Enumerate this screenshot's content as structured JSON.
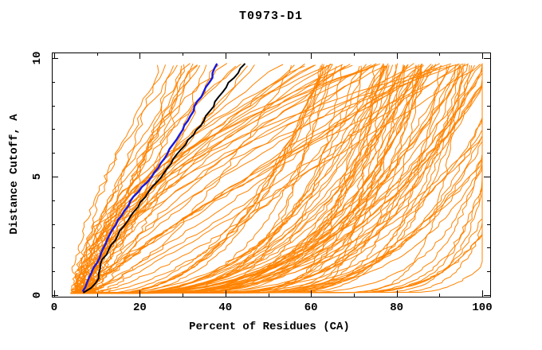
{
  "chart_data": {
    "type": "line",
    "title": "T0973-D1",
    "xlabel": "Percent of Residues (CA)",
    "ylabel": "Distance Cutoff, A",
    "xlim": [
      0,
      100
    ],
    "ylim": [
      0,
      10
    ],
    "grid": false,
    "legend": "none",
    "x_major_ticks": [
      0,
      20,
      40,
      60,
      80,
      100
    ],
    "x_minor_step": 10,
    "y_major_ticks": [
      0,
      5,
      10
    ],
    "y_minor_step": 1,
    "tick_style": "inward-all-four-sides",
    "frame_color": "#000000",
    "series": [
      {
        "name": "highlight-model-blue",
        "color": "#1818dc",
        "width": 2.4,
        "points": [
          [
            6.5,
            0.15
          ],
          [
            9.0,
            1.0
          ],
          [
            11.5,
            2.0
          ],
          [
            14.5,
            3.0
          ],
          [
            18.0,
            4.0
          ],
          [
            22.7,
            5.0
          ],
          [
            26.5,
            6.0
          ],
          [
            30.0,
            7.0
          ],
          [
            32.4,
            7.75
          ],
          [
            34.5,
            8.5
          ],
          [
            36.5,
            9.0
          ],
          [
            38.0,
            9.77
          ]
        ]
      },
      {
        "name": "highlight-model-black",
        "color": "#000000",
        "width": 2.0,
        "points": [
          [
            7.0,
            0.1
          ],
          [
            10.2,
            0.55
          ],
          [
            11.0,
            1.4
          ],
          [
            13.0,
            2.0
          ],
          [
            16.5,
            3.0
          ],
          [
            20.5,
            4.0
          ],
          [
            25.0,
            5.0
          ],
          [
            29.0,
            6.0
          ],
          [
            33.5,
            7.0
          ],
          [
            36.3,
            7.75
          ],
          [
            39.0,
            8.5
          ],
          [
            41.0,
            9.0
          ],
          [
            44.7,
            9.77
          ]
        ]
      }
    ],
    "ensemble": {
      "name": "prediction-models-orange",
      "description": "Dense bundle of ~135 orange cumulative model-accuracy curves; all start near 4-9% at distance ~0.1 A; a dense mass hugs the lower right (reaching 100% by ~1 A) and a fan of curves rises to 24-100% at 9.8 A",
      "color": "#ff8300",
      "count": 135,
      "seed": 97303,
      "start_percent_range": [
        3.7,
        9.0
      ],
      "bottom_fraction": 0.55,
      "bottom_top_percent_range": [
        60,
        115
      ],
      "bottom_exponent_range": [
        0.06,
        0.4
      ],
      "fan_top_percent_range": [
        24,
        101
      ],
      "fan_exponent_range": [
        0.5,
        2.3
      ],
      "min_distance": 0.12,
      "max_distance": 9.78,
      "max_percent": 100
    }
  }
}
